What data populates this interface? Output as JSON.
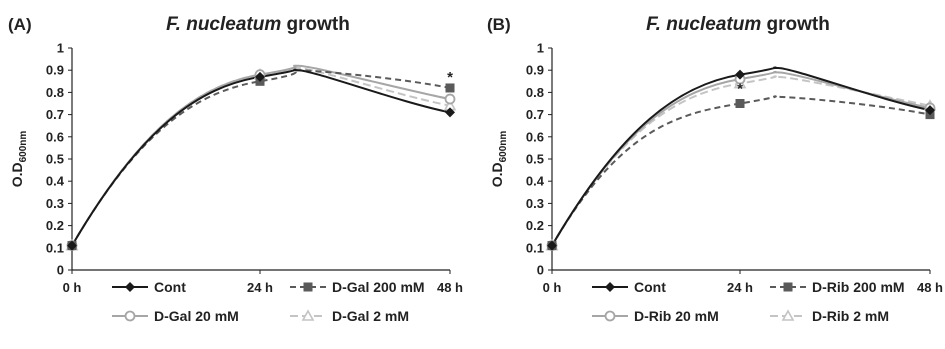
{
  "chart_data": [
    {
      "type": "line",
      "panel_label": "(A)",
      "title_italic": "F. nucleatum",
      "title_rest": " growth",
      "ylabel": "O.D",
      "ylabel_sub": "600nm",
      "ylim": [
        0,
        1
      ],
      "yticks": [
        "0",
        "0.1",
        "0.2",
        "0.3",
        "0.4",
        "0.5",
        "0.6",
        "0.7",
        "0.8",
        "0.9",
        "1"
      ],
      "categories": [
        "0 h",
        "24 h",
        "48 h"
      ],
      "annotation": "*",
      "series": [
        {
          "name": "Cont",
          "values": [
            0.11,
            0.87,
            0.71
          ],
          "peak": 0.9,
          "color": "#1a1a1a",
          "marker": "diamond"
        },
        {
          "name": "D-Gal 200 mM",
          "values": [
            0.11,
            0.85,
            0.82
          ],
          "peak": 0.9,
          "color": "#5a5a5a",
          "marker": "square"
        },
        {
          "name": "D-Gal 20 mM",
          "values": [
            0.11,
            0.88,
            0.77
          ],
          "peak": 0.92,
          "color": "#a6a6a6",
          "marker": "circle"
        },
        {
          "name": "D-Gal 2 mM",
          "values": [
            0.11,
            0.88,
            0.74
          ],
          "peak": 0.91,
          "color": "#c4c4c4",
          "marker": "triangle"
        }
      ]
    },
    {
      "type": "line",
      "panel_label": "(B)",
      "title_italic": "F. nucleatum",
      "title_rest": " growth",
      "ylabel": "O.D",
      "ylabel_sub": "600nm",
      "ylim": [
        0,
        1
      ],
      "yticks": [
        "0",
        "0.1",
        "0.2",
        "0.3",
        "0.4",
        "0.5",
        "0.6",
        "0.7",
        "0.8",
        "0.9",
        "1"
      ],
      "categories": [
        "0 h",
        "24 h",
        "48 h"
      ],
      "annotation": "*",
      "series": [
        {
          "name": "Cont",
          "values": [
            0.11,
            0.88,
            0.72
          ],
          "peak": 0.91,
          "color": "#1a1a1a",
          "marker": "diamond"
        },
        {
          "name": "D-Rib 200 mM",
          "values": [
            0.11,
            0.75,
            0.7
          ],
          "peak": 0.78,
          "color": "#5a5a5a",
          "marker": "square"
        },
        {
          "name": "D-Rib 20 mM",
          "values": [
            0.11,
            0.86,
            0.73
          ],
          "peak": 0.89,
          "color": "#a6a6a6",
          "marker": "circle"
        },
        {
          "name": "D-Rib 2 mM",
          "values": [
            0.11,
            0.84,
            0.74
          ],
          "peak": 0.87,
          "color": "#c4c4c4",
          "marker": "triangle"
        }
      ]
    }
  ]
}
